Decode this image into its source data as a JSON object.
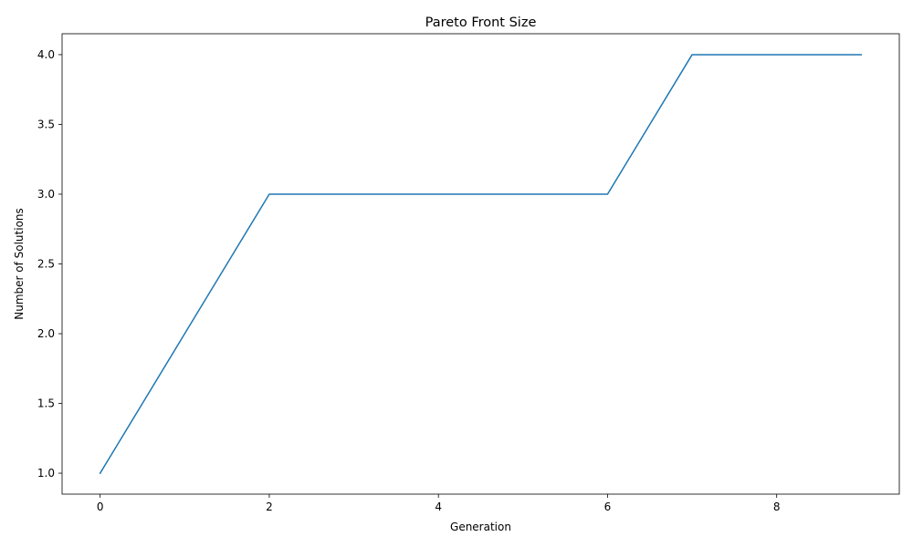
{
  "chart_data": {
    "type": "line",
    "title": "Pareto Front Size",
    "xlabel": "Generation",
    "ylabel": "Number of Solutions",
    "x": [
      0,
      1,
      2,
      3,
      4,
      5,
      6,
      7,
      8,
      9
    ],
    "series": [
      {
        "values": [
          1,
          2,
          3,
          3,
          3,
          3,
          3,
          4,
          4,
          4
        ],
        "color": "#1f77b4"
      }
    ],
    "xlim": [
      -0.45,
      9.45
    ],
    "ylim": [
      0.85,
      4.15
    ],
    "xticks": [
      0,
      2,
      4,
      6,
      8
    ],
    "xtick_labels": [
      "0",
      "2",
      "4",
      "6",
      "8"
    ],
    "yticks": [
      1.0,
      1.5,
      2.0,
      2.5,
      3.0,
      3.5,
      4.0
    ],
    "ytick_labels": [
      "1.0",
      "1.5",
      "2.0",
      "2.5",
      "3.0",
      "3.5",
      "4.0"
    ],
    "grid": false,
    "legend": "none"
  }
}
